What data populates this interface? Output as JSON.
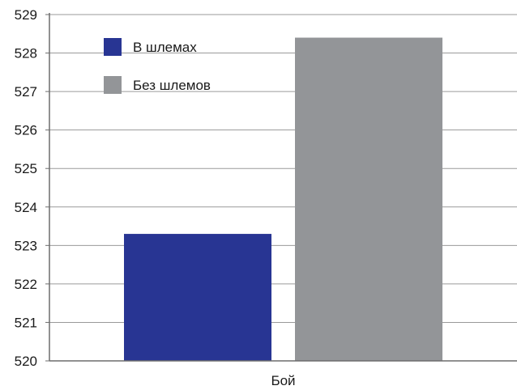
{
  "chart_data": {
    "type": "bar",
    "categories": [
      "Бой"
    ],
    "series": [
      {
        "name": "В шлемах",
        "values": [
          523.3
        ],
        "color": "#283593"
      },
      {
        "name": "Без шлемов",
        "values": [
          528.4
        ],
        "color": "#939598"
      }
    ],
    "title": "",
    "xlabel": "",
    "ylabel": "",
    "ylim": [
      520,
      529
    ],
    "yticks": [
      "520",
      "521",
      "522",
      "523",
      "524",
      "525",
      "526",
      "527",
      "528",
      "529"
    ],
    "grid": true,
    "legend_position": "top-left"
  }
}
